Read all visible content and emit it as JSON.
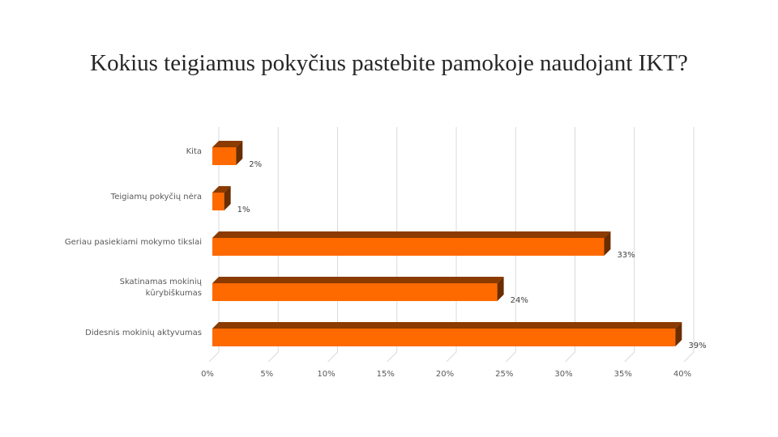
{
  "chart_data": {
    "type": "bar",
    "orientation": "horizontal",
    "style": "3d",
    "title": "Kokius teigiamus pokyčius pastebite pamokoje naudojant IKT?",
    "categories": [
      [
        "Kita"
      ],
      [
        "Teigiamų pokyčių nėra"
      ],
      [
        "Geriau pasiekiami mokymo tikslai"
      ],
      [
        "Skatinamas mokinių",
        "kūrybiškumas"
      ],
      [
        "Didesnis mokinių aktyvumas"
      ]
    ],
    "values": [
      2,
      1,
      33,
      24,
      39
    ],
    "data_labels": [
      "2%",
      "1%",
      "33%",
      "24%",
      "39%"
    ],
    "xlim": [
      0,
      40
    ],
    "ticks": [
      "0%",
      "5%",
      "10%",
      "15%",
      "20%",
      "25%",
      "30%",
      "35%",
      "40%"
    ],
    "colors": {
      "bar_front": "#FF6A00",
      "bar_top": "#8B3A00",
      "bar_side": "#6B2C00",
      "grid": "#D9D9D9"
    },
    "grid": true,
    "legend": "none"
  }
}
